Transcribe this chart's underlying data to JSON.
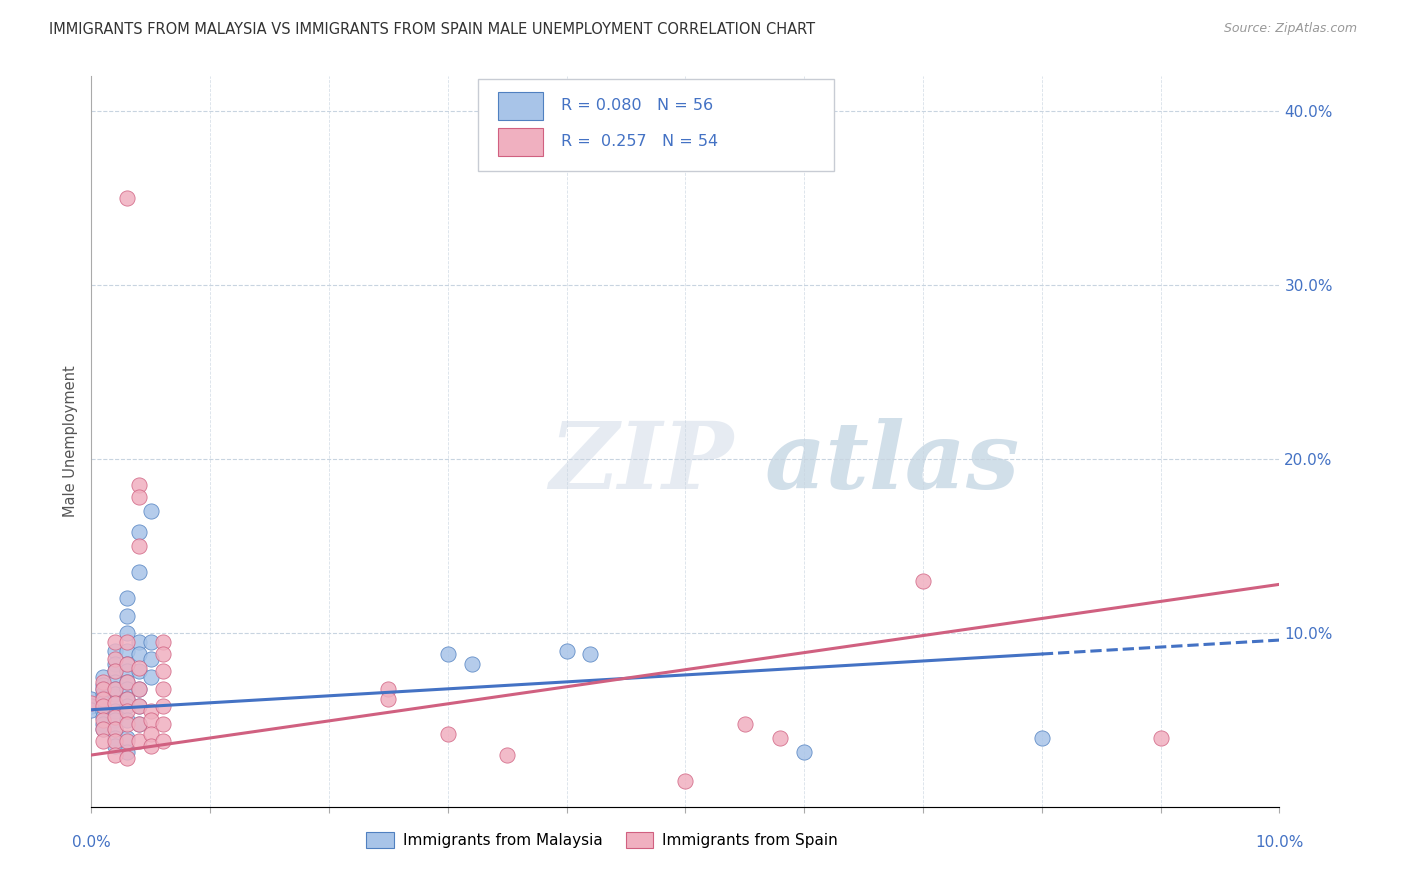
{
  "title": "IMMIGRANTS FROM MALAYSIA VS IMMIGRANTS FROM SPAIN MALE UNEMPLOYMENT CORRELATION CHART",
  "source": "Source: ZipAtlas.com",
  "ylabel": "Male Unemployment",
  "watermark_zip": "ZIP",
  "watermark_atlas": "atlas",
  "legend_malaysia": "Immigrants from Malaysia",
  "legend_spain": "Immigrants from Spain",
  "R_malaysia": 0.08,
  "N_malaysia": 56,
  "R_spain": 0.257,
  "N_spain": 54,
  "malaysia_fill": "#a8c4e8",
  "malaysia_edge": "#5080c0",
  "spain_fill": "#f0b0c0",
  "spain_edge": "#d06080",
  "malaysia_line_color": "#4472c4",
  "spain_line_color": "#d06080",
  "background_color": "#ffffff",
  "grid_color": "#c8d4e0",
  "title_color": "#333333",
  "axis_label_color": "#4472c4",
  "xlim": [
    0.0,
    0.1
  ],
  "ylim": [
    0.0,
    0.42
  ],
  "malaysia_scatter": [
    [
      0.0,
      0.062
    ],
    [
      0.0,
      0.058
    ],
    [
      0.0,
      0.056
    ],
    [
      0.001,
      0.075
    ],
    [
      0.001,
      0.07
    ],
    [
      0.001,
      0.068
    ],
    [
      0.001,
      0.065
    ],
    [
      0.001,
      0.063
    ],
    [
      0.001,
      0.06
    ],
    [
      0.001,
      0.055
    ],
    [
      0.001,
      0.052
    ],
    [
      0.001,
      0.048
    ],
    [
      0.001,
      0.045
    ],
    [
      0.002,
      0.09
    ],
    [
      0.002,
      0.082
    ],
    [
      0.002,
      0.078
    ],
    [
      0.002,
      0.072
    ],
    [
      0.002,
      0.068
    ],
    [
      0.002,
      0.065
    ],
    [
      0.002,
      0.06
    ],
    [
      0.002,
      0.055
    ],
    [
      0.002,
      0.05
    ],
    [
      0.002,
      0.045
    ],
    [
      0.002,
      0.04
    ],
    [
      0.002,
      0.035
    ],
    [
      0.003,
      0.12
    ],
    [
      0.003,
      0.11
    ],
    [
      0.003,
      0.1
    ],
    [
      0.003,
      0.09
    ],
    [
      0.003,
      0.082
    ],
    [
      0.003,
      0.078
    ],
    [
      0.003,
      0.072
    ],
    [
      0.003,
      0.068
    ],
    [
      0.003,
      0.062
    ],
    [
      0.003,
      0.058
    ],
    [
      0.003,
      0.05
    ],
    [
      0.003,
      0.04
    ],
    [
      0.003,
      0.032
    ],
    [
      0.004,
      0.158
    ],
    [
      0.004,
      0.135
    ],
    [
      0.004,
      0.095
    ],
    [
      0.004,
      0.088
    ],
    [
      0.004,
      0.078
    ],
    [
      0.004,
      0.068
    ],
    [
      0.004,
      0.058
    ],
    [
      0.004,
      0.048
    ],
    [
      0.005,
      0.17
    ],
    [
      0.005,
      0.095
    ],
    [
      0.005,
      0.085
    ],
    [
      0.005,
      0.075
    ],
    [
      0.03,
      0.088
    ],
    [
      0.032,
      0.082
    ],
    [
      0.04,
      0.09
    ],
    [
      0.042,
      0.088
    ],
    [
      0.06,
      0.032
    ],
    [
      0.08,
      0.04
    ]
  ],
  "spain_scatter": [
    [
      0.0,
      0.06
    ],
    [
      0.001,
      0.072
    ],
    [
      0.001,
      0.068
    ],
    [
      0.001,
      0.062
    ],
    [
      0.001,
      0.058
    ],
    [
      0.001,
      0.05
    ],
    [
      0.001,
      0.045
    ],
    [
      0.001,
      0.038
    ],
    [
      0.002,
      0.095
    ],
    [
      0.002,
      0.085
    ],
    [
      0.002,
      0.078
    ],
    [
      0.002,
      0.068
    ],
    [
      0.002,
      0.06
    ],
    [
      0.002,
      0.052
    ],
    [
      0.002,
      0.045
    ],
    [
      0.002,
      0.038
    ],
    [
      0.002,
      0.03
    ],
    [
      0.003,
      0.35
    ],
    [
      0.003,
      0.095
    ],
    [
      0.003,
      0.082
    ],
    [
      0.003,
      0.072
    ],
    [
      0.003,
      0.062
    ],
    [
      0.003,
      0.055
    ],
    [
      0.003,
      0.048
    ],
    [
      0.003,
      0.038
    ],
    [
      0.003,
      0.028
    ],
    [
      0.004,
      0.185
    ],
    [
      0.004,
      0.178
    ],
    [
      0.004,
      0.15
    ],
    [
      0.004,
      0.08
    ],
    [
      0.004,
      0.068
    ],
    [
      0.004,
      0.058
    ],
    [
      0.004,
      0.048
    ],
    [
      0.004,
      0.038
    ],
    [
      0.005,
      0.055
    ],
    [
      0.005,
      0.05
    ],
    [
      0.005,
      0.042
    ],
    [
      0.005,
      0.035
    ],
    [
      0.006,
      0.095
    ],
    [
      0.006,
      0.088
    ],
    [
      0.006,
      0.078
    ],
    [
      0.006,
      0.068
    ],
    [
      0.006,
      0.058
    ],
    [
      0.006,
      0.048
    ],
    [
      0.006,
      0.038
    ],
    [
      0.025,
      0.068
    ],
    [
      0.025,
      0.062
    ],
    [
      0.03,
      0.042
    ],
    [
      0.035,
      0.03
    ],
    [
      0.05,
      0.015
    ],
    [
      0.055,
      0.048
    ],
    [
      0.058,
      0.04
    ],
    [
      0.07,
      0.13
    ],
    [
      0.09,
      0.04
    ]
  ],
  "malaysia_line": {
    "x0": 0.0,
    "x1": 0.08,
    "x_dash_start": 0.08,
    "x_dash_end": 0.1,
    "y0": 0.056,
    "y1": 0.088
  },
  "spain_line": {
    "x0": 0.0,
    "x1": 0.1,
    "y0": 0.03,
    "y1": 0.128
  }
}
